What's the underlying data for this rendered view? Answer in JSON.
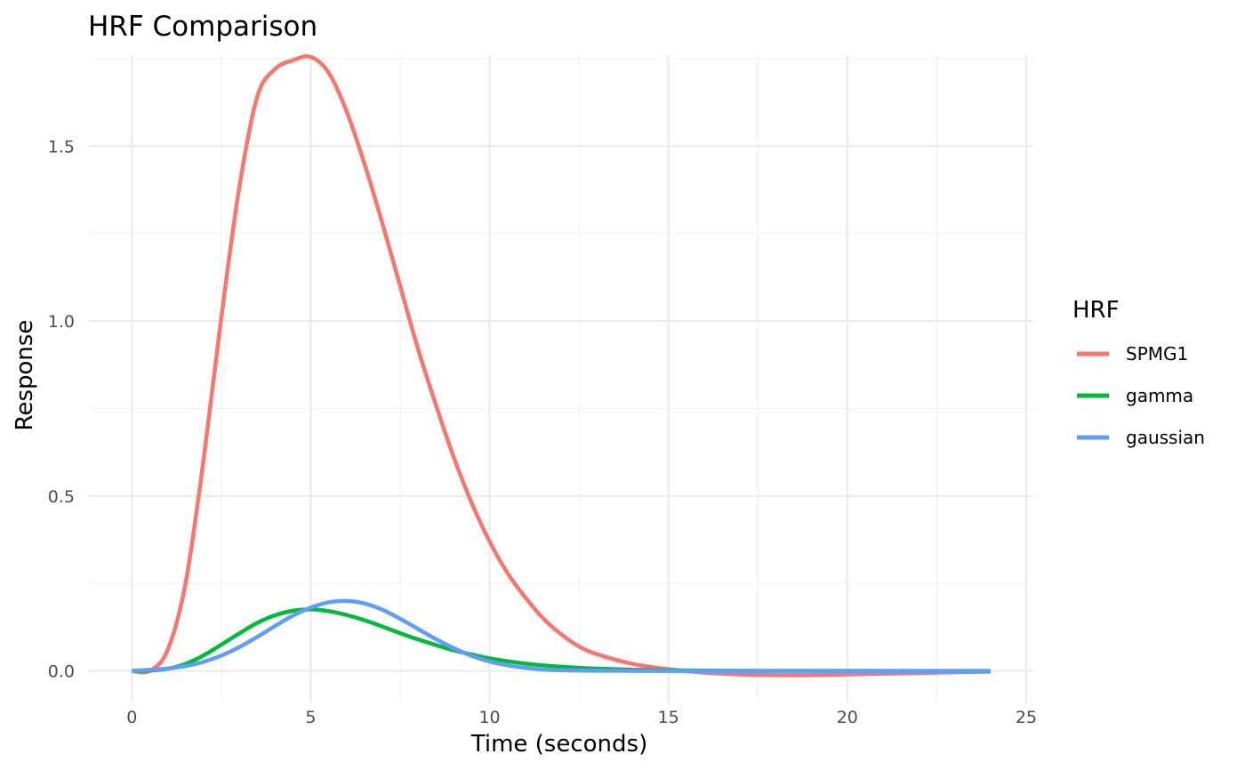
{
  "chart_data": {
    "type": "line",
    "title": "HRF Comparison",
    "xlabel": "Time (seconds)",
    "ylabel": "Response",
    "xlim": [
      -1.2,
      25.2
    ],
    "ylim": [
      -0.09,
      1.76
    ],
    "x_ticks": [
      0,
      5,
      10,
      15,
      20,
      25
    ],
    "y_ticks": [
      0.0,
      0.5,
      1.0,
      1.5
    ],
    "x_tick_labels": [
      "0",
      "5",
      "10",
      "15",
      "20",
      "25"
    ],
    "y_tick_labels": [
      "0.0",
      "0.5",
      "1.0",
      "1.5"
    ],
    "grid": true,
    "legend": {
      "title": "HRF",
      "position": "right"
    },
    "series": [
      {
        "name": "SPMG1",
        "color": "#F8766D",
        "x": [
          0,
          0.5,
          1,
          1.5,
          2,
          2.5,
          3,
          3.5,
          4,
          4.5,
          5,
          5.5,
          6,
          6.5,
          7,
          7.5,
          8,
          8.5,
          9,
          9.5,
          10,
          10.5,
          11,
          11.5,
          12,
          12.5,
          13,
          14,
          15,
          16,
          17,
          18,
          19,
          20,
          21,
          22,
          23,
          24
        ],
        "y": [
          0,
          0.0,
          0.06,
          0.25,
          0.6,
          1.01,
          1.38,
          1.64,
          1.72,
          1.745,
          1.755,
          1.71,
          1.6,
          1.45,
          1.28,
          1.1,
          0.92,
          0.76,
          0.61,
          0.48,
          0.37,
          0.28,
          0.21,
          0.15,
          0.105,
          0.07,
          0.048,
          0.02,
          0.005,
          -0.005,
          -0.01,
          -0.012,
          -0.012,
          -0.01,
          -0.008,
          -0.006,
          -0.004,
          -0.002
        ]
      },
      {
        "name": "gamma",
        "color": "#00BA38",
        "x": [
          0,
          0.5,
          1,
          1.5,
          2,
          2.5,
          3,
          3.5,
          4,
          4.5,
          5,
          5.5,
          6,
          6.5,
          7,
          7.5,
          8,
          8.5,
          9,
          9.5,
          10,
          11,
          12,
          13,
          14,
          15,
          16,
          17,
          18,
          19,
          20,
          21,
          22,
          23,
          24
        ],
        "y": [
          0,
          0.001,
          0.006,
          0.02,
          0.044,
          0.075,
          0.107,
          0.137,
          0.159,
          0.172,
          0.176,
          0.171,
          0.16,
          0.145,
          0.127,
          0.108,
          0.09,
          0.074,
          0.059,
          0.047,
          0.036,
          0.021,
          0.012,
          0.0065,
          0.0035,
          0.0018,
          0.0009,
          0.0005,
          0.0002,
          0.0001,
          0.0001,
          0,
          0,
          0,
          0
        ]
      },
      {
        "name": "gaussian",
        "color": "#619CFF",
        "x": [
          0,
          0.5,
          1,
          1.5,
          2,
          2.5,
          3,
          3.5,
          4,
          4.5,
          5,
          5.5,
          6,
          6.5,
          7,
          7.5,
          8,
          8.5,
          9,
          9.5,
          10,
          10.5,
          11,
          11.5,
          12,
          13,
          14,
          15,
          16,
          18,
          20,
          22,
          24
        ],
        "y": [
          0.001,
          0.003,
          0.007,
          0.014,
          0.026,
          0.044,
          0.068,
          0.097,
          0.128,
          0.158,
          0.181,
          0.196,
          0.2,
          0.193,
          0.175,
          0.149,
          0.12,
          0.091,
          0.065,
          0.043,
          0.027,
          0.016,
          0.009,
          0.004,
          0.002,
          0.0005,
          0.0001,
          0,
          0,
          0,
          0,
          0,
          0
        ]
      }
    ]
  }
}
